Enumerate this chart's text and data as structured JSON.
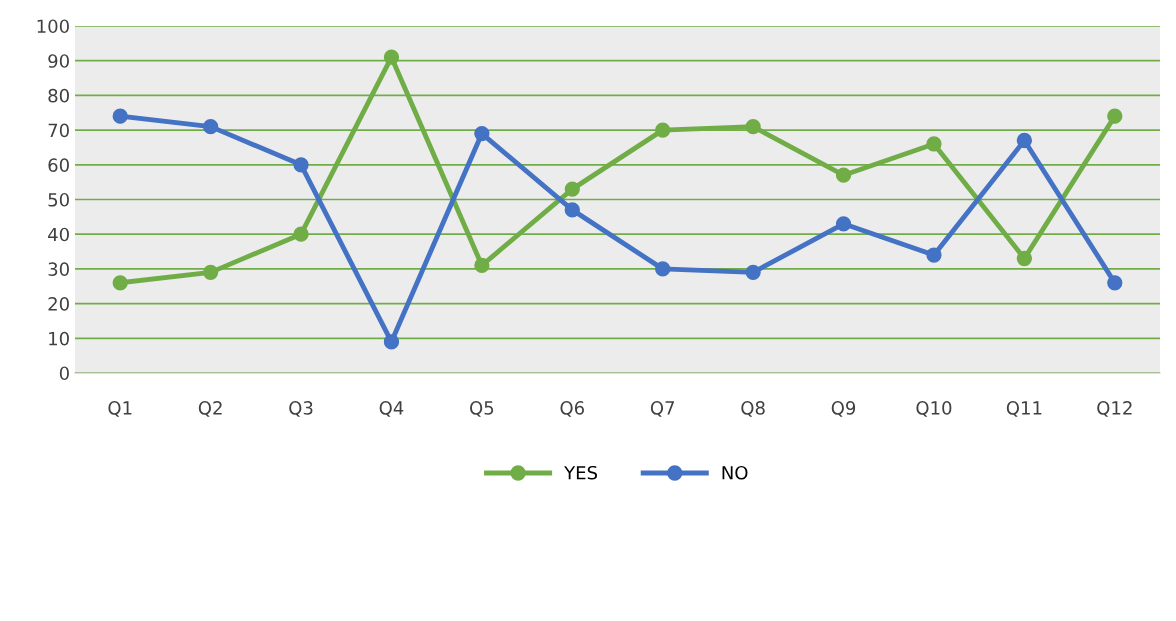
{
  "chart_data": {
    "type": "line",
    "categories": [
      "Q1",
      "Q2",
      "Q3",
      "Q4",
      "Q5",
      "Q6",
      "Q7",
      "Q8",
      "Q9",
      "Q10",
      "Q11",
      "Q12"
    ],
    "series": [
      {
        "name": "YES",
        "color": "#70ad47",
        "values": [
          26,
          29,
          40,
          91,
          31,
          53,
          70,
          71,
          57,
          66,
          33,
          74
        ]
      },
      {
        "name": "NO",
        "color": "#4472c4",
        "values": [
          74,
          71,
          60,
          9,
          69,
          47,
          30,
          29,
          43,
          34,
          67,
          26
        ]
      }
    ],
    "ylim": [
      0,
      100
    ],
    "yticks": [
      0,
      10,
      20,
      30,
      40,
      50,
      60,
      70,
      80,
      90,
      100
    ],
    "grid": "y",
    "legend": "bottom",
    "marker": "circle",
    "line_style": "solid"
  }
}
